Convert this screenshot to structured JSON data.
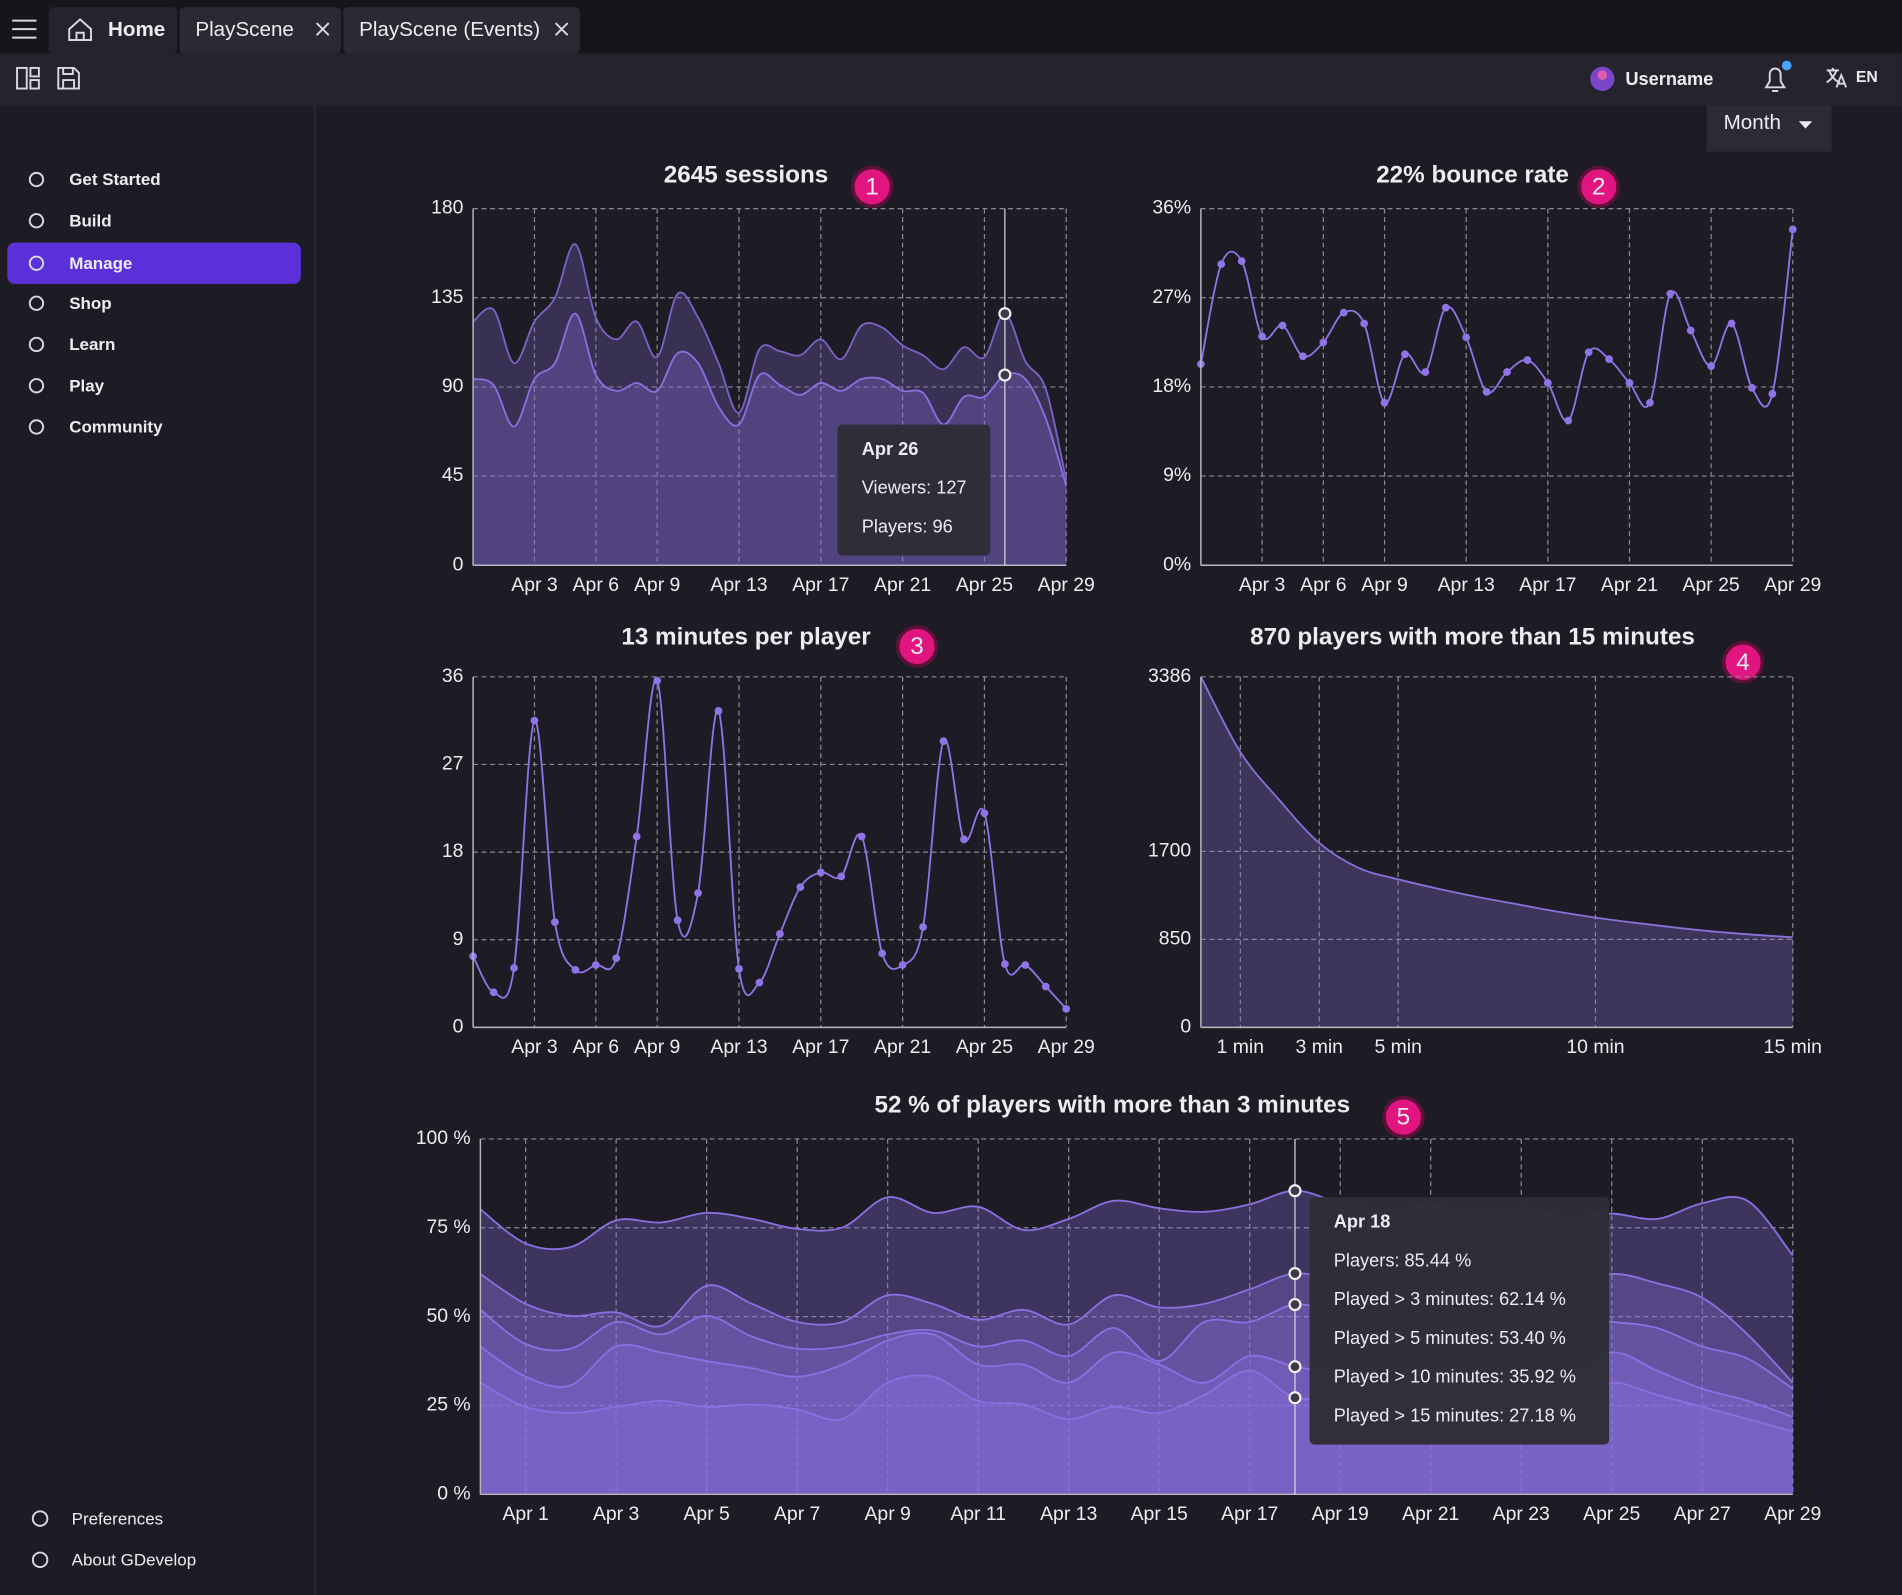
{
  "tabs": [
    "Home",
    "PlayScene",
    "PlayScene (Events)"
  ],
  "user": {
    "name": "Username",
    "language": "EN"
  },
  "period": "Month",
  "sidebar": [
    {
      "label": "Get Started"
    },
    {
      "label": "Build"
    },
    {
      "label": "Manage",
      "selected": true
    },
    {
      "label": "Shop"
    },
    {
      "label": "Learn"
    },
    {
      "label": "Play"
    },
    {
      "label": "Community"
    }
  ],
  "footer_items": [
    "Preferences",
    "About GDevelop"
  ],
  "chart_data": [
    {
      "type": "area",
      "title": "2645 sessions",
      "badge": "1",
      "grid": true,
      "categories": [
        null,
        null,
        null,
        "Apr 3",
        null,
        null,
        "Apr 6",
        null,
        null,
        "Apr 9",
        null,
        null,
        null,
        "Apr 13",
        null,
        null,
        null,
        "Apr 17",
        null,
        null,
        null,
        "Apr 21",
        null,
        null,
        null,
        "Apr 25",
        null,
        null,
        null,
        "Apr 29"
      ],
      "series": [
        {
          "color": "#7b62c4",
          "values": [
            123,
            129,
            102,
            123,
            135,
            162,
            125,
            114,
            123,
            105,
            137,
            125,
            102,
            77,
            109,
            108,
            106,
            114,
            104,
            121,
            120,
            111,
            106,
            99,
            110,
            105,
            127,
            103,
            89,
            43
          ]
        },
        {
          "color": "#8a6fe0",
          "values": [
            94,
            91,
            70,
            94,
            102,
            127,
            96,
            88,
            92,
            88,
            107,
            102,
            80,
            71,
            96,
            91,
            86,
            92,
            88,
            94,
            94,
            88,
            87,
            71,
            85,
            85,
            96,
            94,
            74,
            40
          ]
        }
      ],
      "ylim": [
        0,
        180
      ],
      "yticks": [
        0,
        45,
        90,
        135,
        180
      ],
      "tooltip": {
        "hover_index": 26,
        "title": "Apr 26",
        "lines": [
          "Viewers: 127",
          "Players: 96"
        ]
      }
    },
    {
      "type": "line",
      "title": "22% bounce rate",
      "badge": "2",
      "grid": true,
      "markers": true,
      "categories": [
        null,
        null,
        null,
        "Apr 3",
        null,
        null,
        "Apr 6",
        null,
        null,
        "Apr 9",
        null,
        null,
        null,
        "Apr 13",
        null,
        null,
        null,
        "Apr 17",
        null,
        null,
        null,
        "Apr 21",
        null,
        null,
        null,
        "Apr 25",
        null,
        null,
        null,
        "Apr 29"
      ],
      "series": [
        {
          "color": "#8f74e6",
          "values": [
            20.3,
            30.4,
            30.7,
            23.1,
            24.2,
            21.1,
            22.5,
            25.5,
            24.4,
            16.4,
            21.3,
            19.5,
            26,
            23,
            17.5,
            19.5,
            20.7,
            18.4,
            14.6,
            21.5,
            20.8,
            18.4,
            16.4,
            27.4,
            23.7,
            20.1,
            24.4,
            17.9,
            17.3,
            33.9
          ]
        }
      ],
      "ylim": [
        0,
        36
      ],
      "yticks": [
        {
          "value": 0,
          "label": "0%"
        },
        {
          "value": 9,
          "label": "9%"
        },
        {
          "value": 18,
          "label": "18%"
        },
        {
          "value": 27,
          "label": "27%"
        },
        {
          "value": 36,
          "label": "36%"
        }
      ]
    },
    {
      "type": "line",
      "title": "13 minutes per player",
      "badge": "3",
      "grid": true,
      "markers": true,
      "categories": [
        null,
        null,
        null,
        "Apr 3",
        null,
        null,
        "Apr 6",
        null,
        null,
        "Apr 9",
        null,
        null,
        null,
        "Apr 13",
        null,
        null,
        null,
        "Apr 17",
        null,
        null,
        null,
        "Apr 21",
        null,
        null,
        null,
        "Apr 25",
        null,
        null,
        null,
        "Apr 29"
      ],
      "series": [
        {
          "color": "#8f74e6",
          "values": [
            7.3,
            3.6,
            6.1,
            31.5,
            10.8,
            5.9,
            6.4,
            7.1,
            19.6,
            35.6,
            11,
            13.8,
            32.5,
            6,
            4.6,
            9.6,
            14.4,
            15.9,
            15.5,
            19.6,
            7.6,
            6.4,
            10.3,
            29.4,
            19.3,
            22,
            6.5,
            6.4,
            4.2,
            1.9
          ]
        }
      ],
      "ylim": [
        0,
        36
      ],
      "yticks": [
        0,
        9,
        18,
        27,
        36
      ]
    },
    {
      "type": "area",
      "title": "870 players with more than 15 minutes",
      "badge": "4",
      "grid": true,
      "x": [
        0,
        1,
        2,
        3,
        4,
        5,
        6,
        7,
        8,
        9,
        10,
        11,
        12,
        13,
        14,
        15
      ],
      "series": [
        {
          "color": "#8a70d8",
          "values": [
            3386,
            2660,
            2190,
            1781,
            1540,
            1430,
            1340,
            1260,
            1190,
            1120,
            1060,
            1010,
            965,
            925,
            895,
            870
          ]
        }
      ],
      "xlim": [
        0,
        15
      ],
      "xticks": [
        {
          "value": 1,
          "label": "1 min"
        },
        {
          "value": 3,
          "label": "3 min"
        },
        {
          "value": 5,
          "label": "5 min"
        },
        {
          "value": 10,
          "label": "10 min"
        },
        {
          "value": 15,
          "label": "15 min"
        }
      ],
      "ylim": [
        0,
        3386
      ],
      "yticks": [
        0,
        850,
        1700,
        3386
      ]
    },
    {
      "type": "area",
      "title": "52 % of players with more than 3 minutes",
      "badge": "5",
      "grid": true,
      "categories": [
        null,
        "Apr 1",
        null,
        "Apr 3",
        null,
        "Apr 5",
        null,
        "Apr 7",
        null,
        "Apr 9",
        null,
        "Apr 11",
        null,
        "Apr 13",
        null,
        "Apr 15",
        null,
        "Apr 17",
        null,
        "Apr 19",
        null,
        "Apr 21",
        null,
        "Apr 23",
        null,
        "Apr 25",
        null,
        "Apr 27",
        null,
        "Apr 29"
      ],
      "series": [
        {
          "color": "#8b6fe3",
          "values": [
            80.2,
            70.6,
            69.6,
            77.1,
            76.5,
            79.2,
            77.5,
            74.7,
            75.1,
            83.6,
            79.2,
            80.9,
            74.4,
            77.5,
            82.6,
            80.5,
            79.5,
            81.6,
            85.44,
            82,
            80,
            81,
            79,
            80,
            78,
            79,
            77.5,
            81.9,
            82.6,
            67.2
          ]
        },
        {
          "color": "#8b6fe3",
          "values": [
            62,
            53.6,
            50.2,
            51.2,
            47.4,
            58.7,
            53.6,
            48.5,
            48.5,
            56,
            53.6,
            49.1,
            51.9,
            47.8,
            56,
            52.6,
            53.6,
            57.7,
            62.14,
            60,
            58,
            57,
            58,
            57,
            58,
            62,
            59.4,
            55.3,
            45,
            31.4
          ]
        },
        {
          "color": "#8b6fe3",
          "values": [
            51.9,
            42.3,
            41,
            48.5,
            45,
            50.2,
            44.4,
            41,
            41.6,
            45,
            46.1,
            41.6,
            43.3,
            38.9,
            46.8,
            37.5,
            48.5,
            48.5,
            53.4,
            51,
            50,
            49,
            50,
            48,
            49,
            48.5,
            46.8,
            41.6,
            38.2,
            29.7
          ]
        },
        {
          "color": "#8b6fe3",
          "values": [
            41.6,
            33.1,
            30.7,
            41.6,
            39.9,
            37.5,
            35.5,
            33.1,
            36.5,
            43.3,
            45,
            36.5,
            36.5,
            31.4,
            39.9,
            36.5,
            31.4,
            38.9,
            35.92,
            34,
            33,
            32,
            33,
            31,
            32,
            39.9,
            34.8,
            29.7,
            26.3,
            21.8
          ]
        },
        {
          "color": "#8b6fe3",
          "values": [
            31.4,
            24.6,
            22.9,
            24.6,
            26.3,
            24.6,
            25.3,
            23.9,
            21.2,
            31.4,
            33.1,
            26.3,
            25.3,
            21.2,
            24.6,
            22.9,
            28,
            34.8,
            27.18,
            28,
            27,
            26,
            27,
            26,
            27,
            31.4,
            28,
            24.6,
            21.2,
            17.7
          ]
        }
      ],
      "ylim": [
        0,
        100
      ],
      "yticks": [
        {
          "value": 0,
          "label": "0 %"
        },
        {
          "value": 25,
          "label": "25 %"
        },
        {
          "value": 50,
          "label": "50 %"
        },
        {
          "value": 75,
          "label": "75 %"
        },
        {
          "value": 100,
          "label": "100 %"
        }
      ],
      "tooltip": {
        "hover_index": 18,
        "title": "Apr 18",
        "lines": [
          "Players: 85.44 %",
          "Played > 3 minutes: 62.14 %",
          "Played > 5 minutes: 53.40 %",
          "Played > 10 minutes: 35.92 %",
          "Played > 15 minutes: 27.18 %"
        ]
      }
    }
  ]
}
